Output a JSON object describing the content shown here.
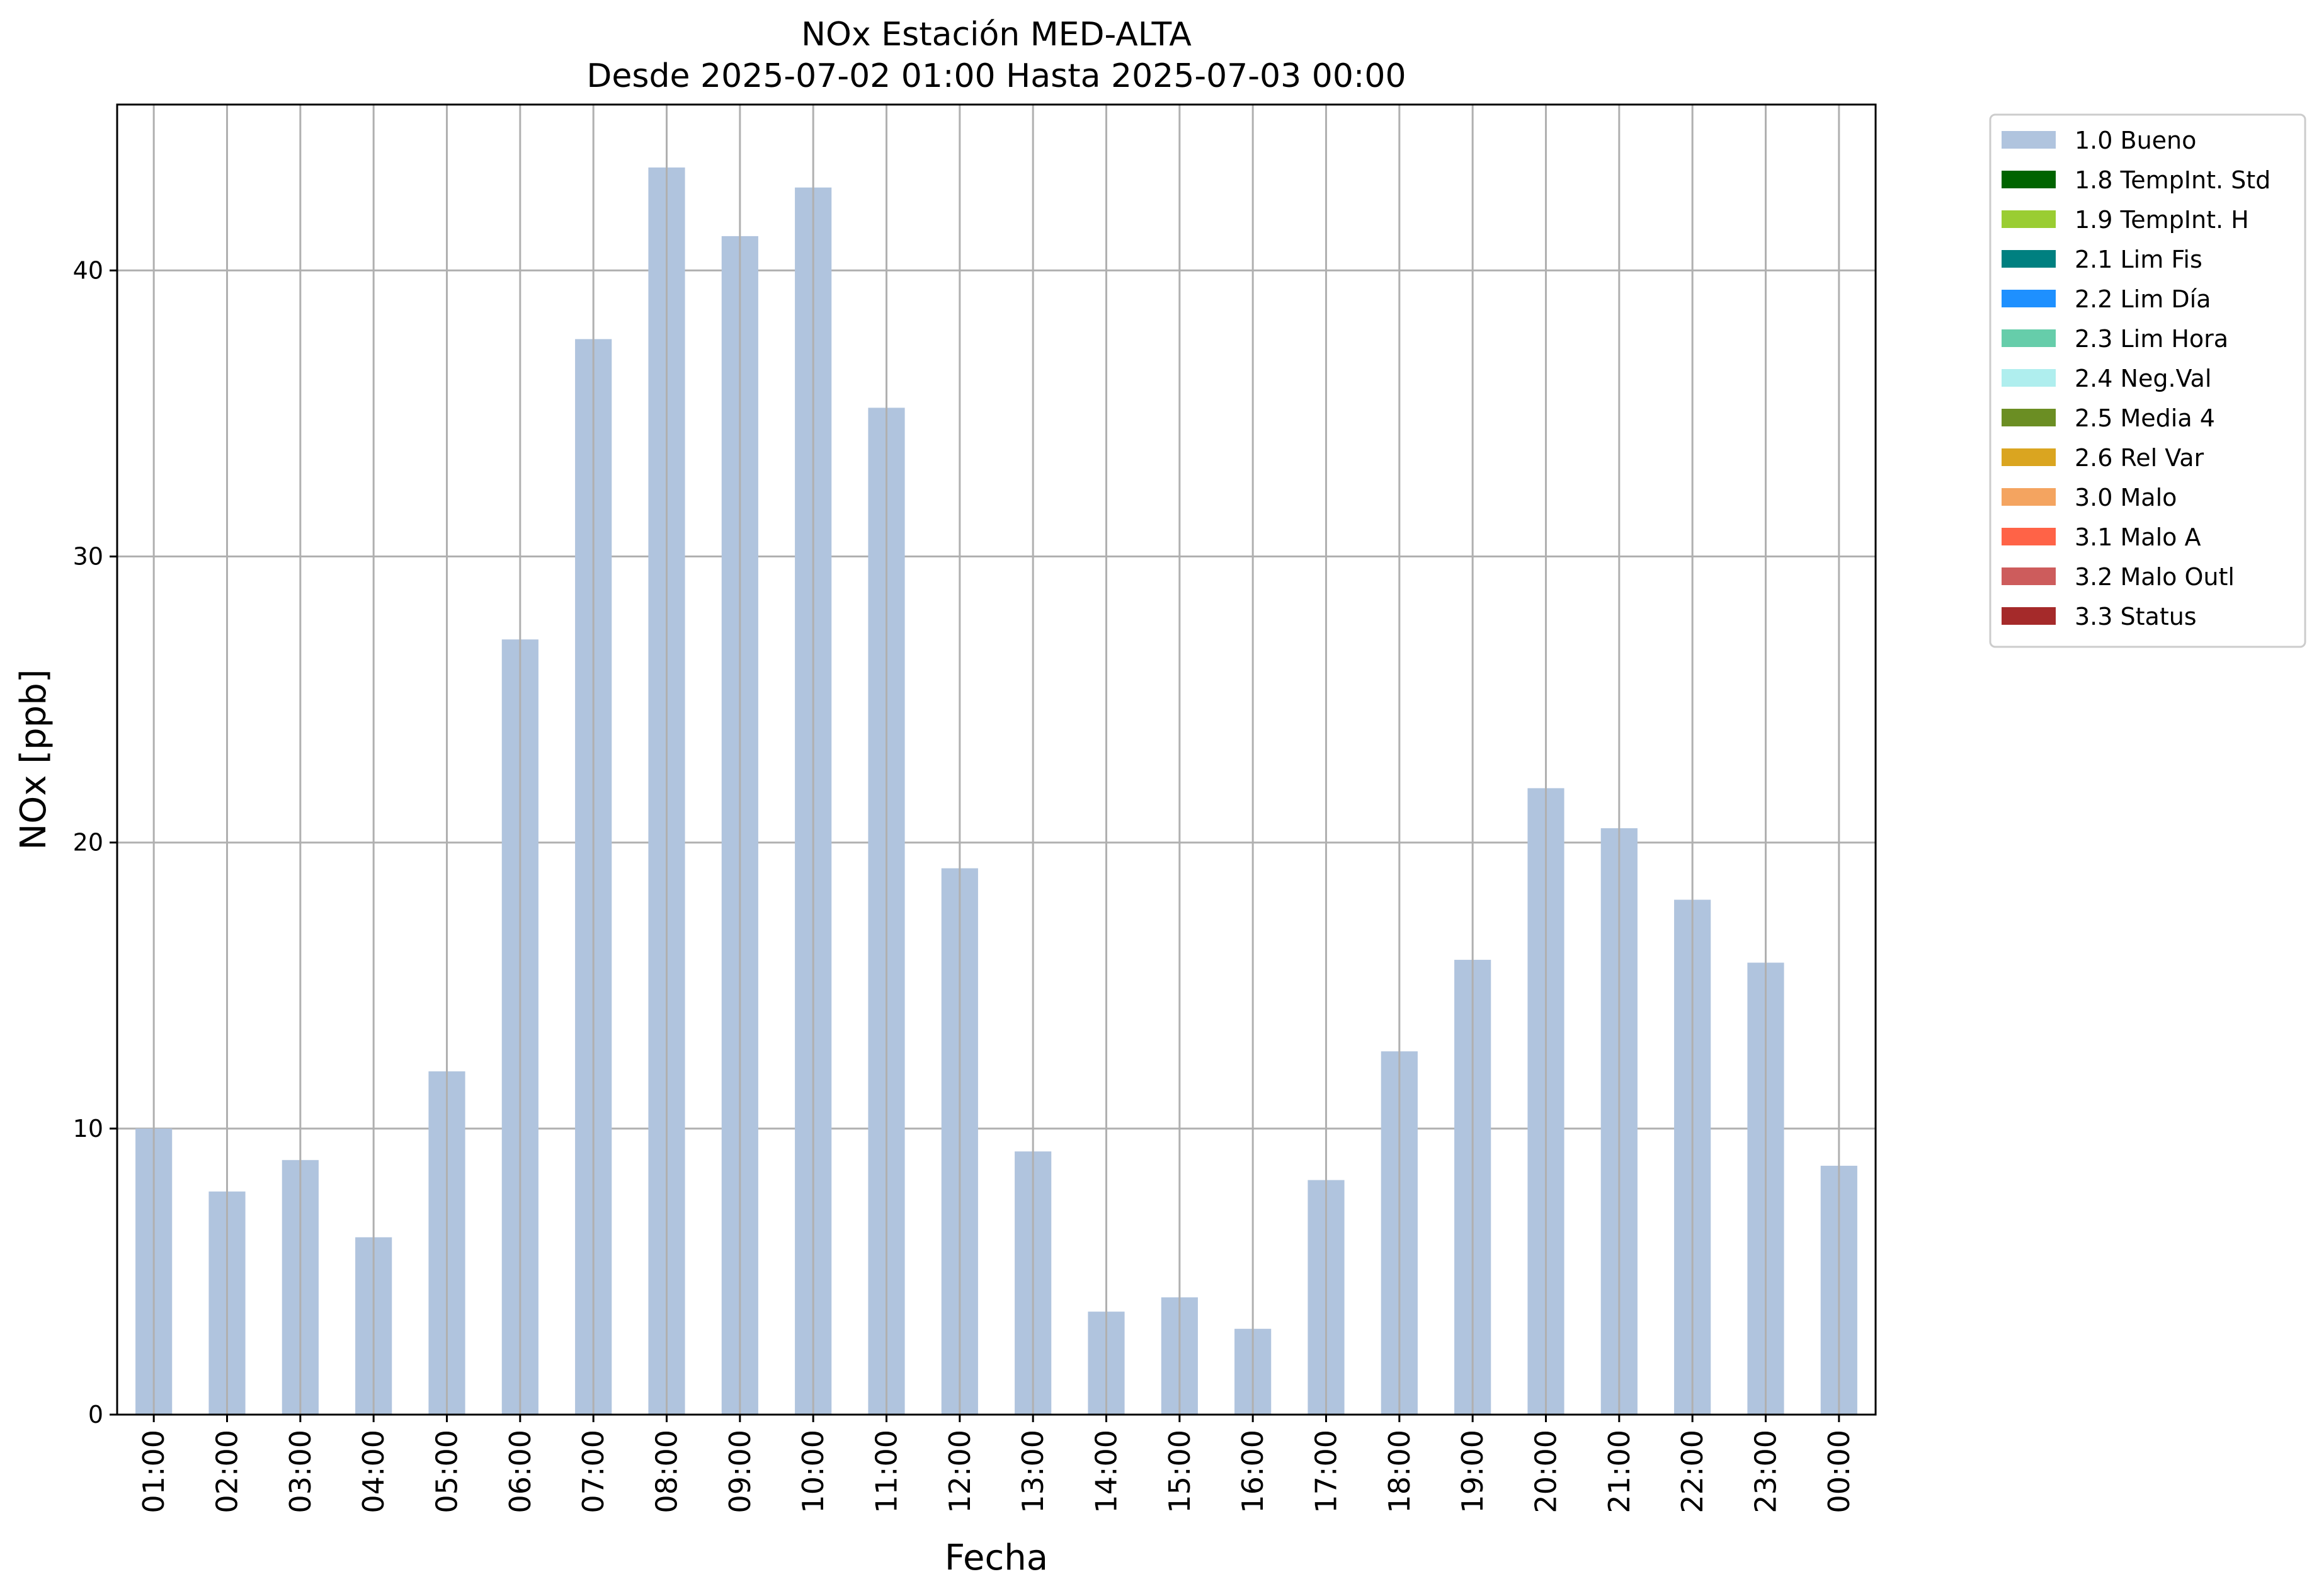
{
  "chart_data": {
    "type": "bar",
    "title": "NOx Estación MED-ALTA",
    "subtitle": "Desde 2025-07-02 01:00 Hasta 2025-07-03 00:00",
    "xlabel": "Fecha",
    "ylabel": "NOx [ppb]",
    "ylim": [
      0,
      45.8
    ],
    "yticks": [
      0,
      10,
      20,
      30,
      40
    ],
    "grid": true,
    "legend_position": "outside-right",
    "bar_color": "#B0C4DE",
    "categories": [
      "01:00",
      "02:00",
      "03:00",
      "04:00",
      "05:00",
      "06:00",
      "07:00",
      "08:00",
      "09:00",
      "10:00",
      "11:00",
      "12:00",
      "13:00",
      "14:00",
      "15:00",
      "16:00",
      "17:00",
      "18:00",
      "19:00",
      "20:00",
      "21:00",
      "22:00",
      "23:00",
      "00:00"
    ],
    "series": [
      {
        "name": "1.0 Bueno",
        "color": "#B0C4DE",
        "values": [
          10.0,
          7.8,
          8.9,
          6.2,
          12.0,
          27.1,
          37.6,
          43.6,
          41.2,
          42.9,
          35.2,
          19.1,
          9.2,
          3.6,
          4.1,
          3.0,
          8.2,
          12.7,
          15.9,
          21.9,
          20.5,
          18.0,
          15.8,
          8.7
        ]
      }
    ],
    "legend": [
      {
        "label": "1.0 Bueno",
        "color": "#B0C4DE"
      },
      {
        "label": "1.8 TempInt. Std",
        "color": "#006400"
      },
      {
        "label": "1.9 TempInt. H",
        "color": "#9ACD32"
      },
      {
        "label": "2.1 Lim Fis",
        "color": "#008080"
      },
      {
        "label": "2.2 Lim Día",
        "color": "#1E90FF"
      },
      {
        "label": "2.3 Lim Hora",
        "color": "#66CDAA"
      },
      {
        "label": "2.4 Neg.Val",
        "color": "#AFEEEE"
      },
      {
        "label": "2.5 Media 4",
        "color": "#6B8E23"
      },
      {
        "label": "2.6 Rel Var",
        "color": "#DAA520"
      },
      {
        "label": "3.0 Malo",
        "color": "#F4A460"
      },
      {
        "label": "3.1 Malo A",
        "color": "#FF6347"
      },
      {
        "label": "3.2 Malo Outl",
        "color": "#CD5C5C"
      },
      {
        "label": "3.3 Status",
        "color": "#A52A2A"
      }
    ]
  }
}
